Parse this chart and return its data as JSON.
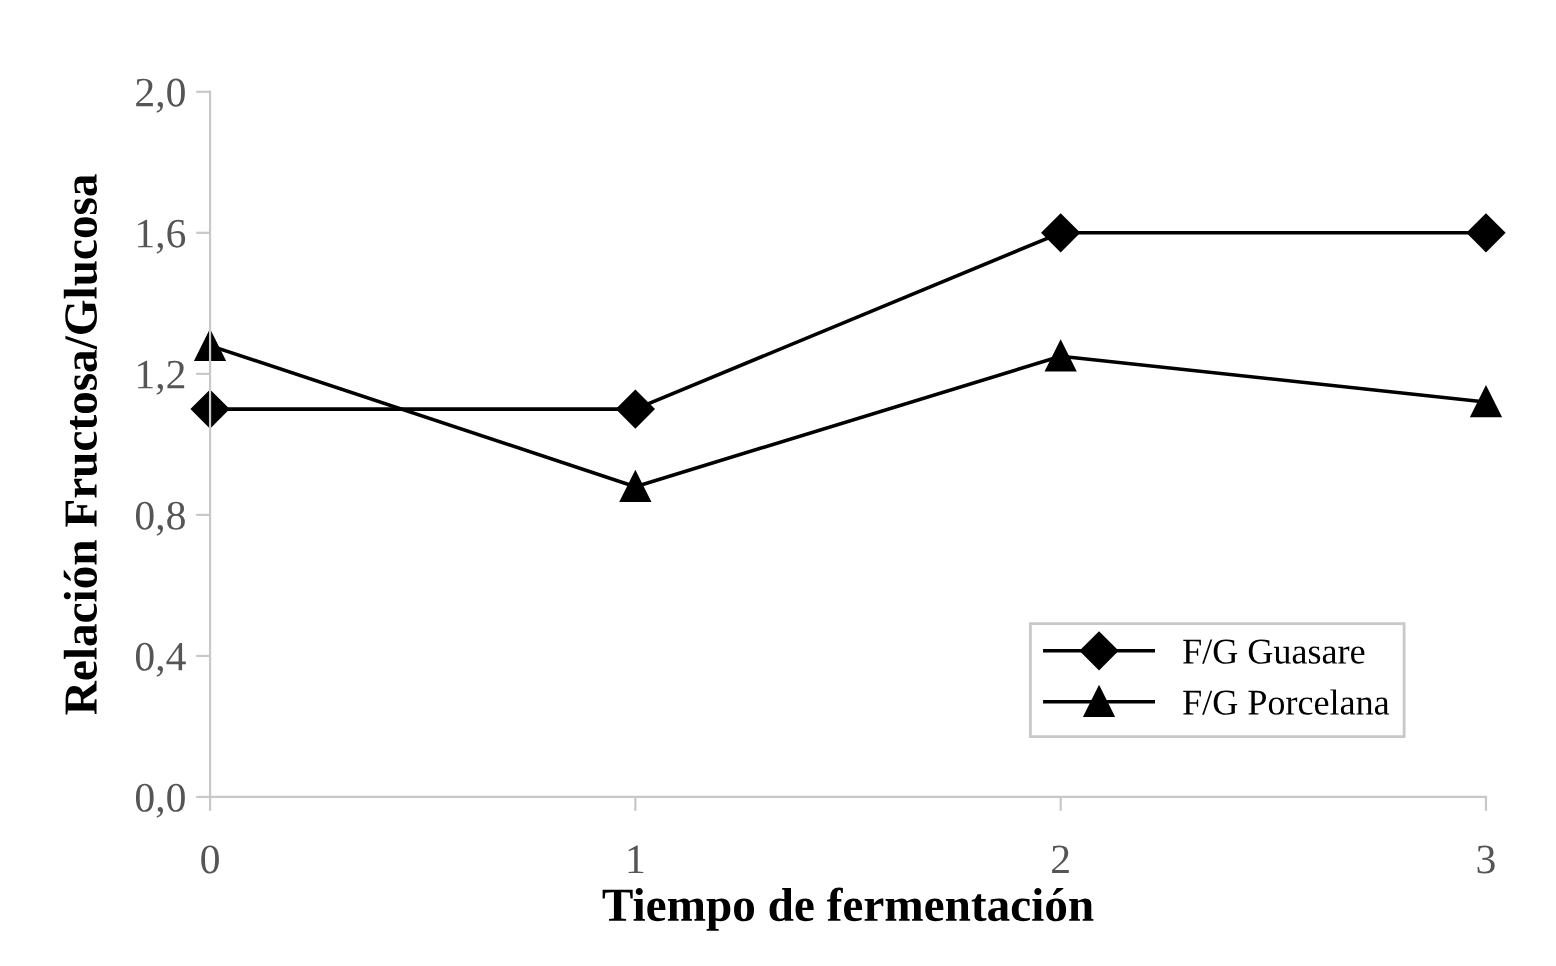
{
  "chart_data": {
    "type": "line",
    "xlabel": "Tiempo de fermentación",
    "ylabel": "Relación Fructosa/Glucosa",
    "x": [
      0,
      1,
      2,
      3
    ],
    "series": [
      {
        "name": "F/G Guasare",
        "color": "#000000",
        "values": [
          1.1,
          1.1,
          1.6,
          1.6
        ],
        "marker": "diamond"
      },
      {
        "name": "F/G Porcelana",
        "color": "#000000",
        "values": [
          1.28,
          0.88,
          1.25,
          1.12
        ],
        "marker": "triangle"
      }
    ],
    "xlim": [
      0,
      3
    ],
    "xticks": [
      0,
      1,
      2,
      3
    ],
    "ylim": [
      0,
      2
    ],
    "yticks": [
      {
        "value": 0,
        "label": "0,0"
      },
      {
        "value": 0.4,
        "label": "0,4"
      },
      {
        "value": 0.8,
        "label": "0,8"
      },
      {
        "value": 1.2,
        "label": "1,2"
      },
      {
        "value": 1.6,
        "label": "1,6"
      },
      {
        "value": 2,
        "label": "2,0"
      }
    ],
    "grid": false,
    "legend": "bottom right",
    "line_style": "solid"
  }
}
